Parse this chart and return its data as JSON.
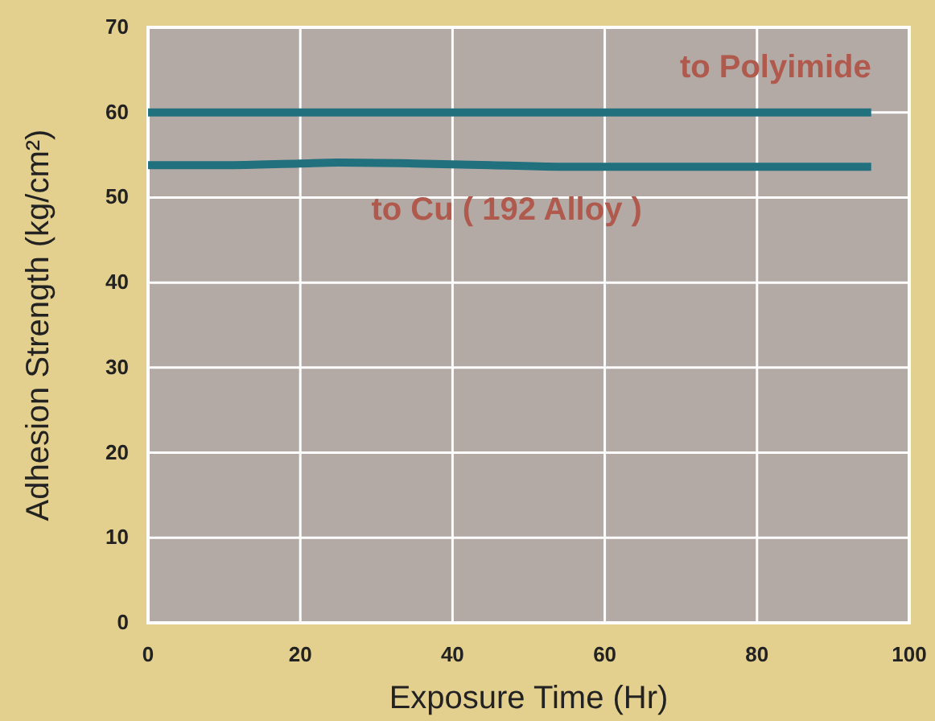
{
  "chart_data": {
    "type": "line",
    "xlabel": "Exposure Time (Hr)",
    "ylabel": "Adhesion Strength (kg/cm²)",
    "xlim": [
      0,
      100
    ],
    "xticks": [
      0,
      20,
      40,
      60,
      80,
      100
    ],
    "ylim": [
      0,
      70
    ],
    "yticks": [
      0,
      10,
      20,
      30,
      40,
      50,
      60,
      70
    ],
    "grid": true,
    "marker": "none",
    "line_style": "solid",
    "series": [
      {
        "name": "to Polyimide",
        "color": "#20707e",
        "x": [
          0,
          20,
          40,
          60,
          80,
          95
        ],
        "values": [
          60,
          60,
          60,
          60,
          60,
          60
        ]
      },
      {
        "name": "to Cu ( 192 Alloy )",
        "color": "#20707e",
        "x": [
          0,
          10,
          20,
          25,
          35,
          45,
          55,
          60,
          70,
          80,
          95
        ],
        "values": [
          53.8,
          53.8,
          54,
          54.1,
          54,
          53.8,
          53.6,
          53.6,
          53.6,
          53.6,
          53.6
        ]
      }
    ]
  }
}
